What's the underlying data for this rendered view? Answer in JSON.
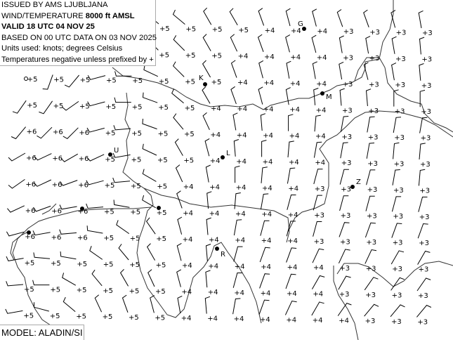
{
  "header": {
    "issued_by": "ISSUED BY AMS LJUBLJANA",
    "level_prefix": "WIND/TEMPERATURE ",
    "level": "8000 ft AMSL",
    "valid": "VALID 18 UTC 04 NOV 25",
    "based_on": "BASED ON 00 UTC DATA ON 03 NOV 2025",
    "units": "Units used: knots; degrees Celsius",
    "note": "Temperatures negative unless prefixed by +"
  },
  "model_label": "MODEL: ALADIN/SI",
  "stations": [
    {
      "label": "G"
    },
    {
      "label": "K"
    },
    {
      "label": "M"
    },
    {
      "label": "U"
    },
    {
      "label": "L"
    },
    {
      "label": "Z"
    },
    {
      "label": "R"
    }
  ],
  "grid": {
    "wind_speed_kt": 10,
    "temperatures": [
      [
        null,
        null,
        null,
        null,
        null,
        "+5",
        "+5",
        "+5",
        "+5",
        "+4",
        "+4",
        "+4",
        "+3",
        "+3",
        "+3",
        "+3"
      ],
      [
        null,
        null,
        null,
        null,
        null,
        "+5",
        "+5",
        "+5",
        "+4",
        "+4",
        "+4",
        "+4",
        "+3",
        "+3",
        "+3",
        "+3"
      ],
      [
        "+5",
        "+5",
        "+5",
        "+5",
        "+5",
        "+5",
        "+5",
        "+5",
        "+4",
        "+4",
        "+4",
        "+4",
        "+3",
        "+3",
        "+3",
        "+3"
      ],
      [
        "+5",
        "+5",
        "+5",
        "+5",
        "+5",
        "+5",
        "+5",
        "+4",
        "+4",
        "+4",
        "+4",
        "+4",
        "+3",
        "+3",
        "+3",
        "+3"
      ],
      [
        "+6",
        "+6",
        "+6",
        "+5",
        "+5",
        "+5",
        "+5",
        "+4",
        "+4",
        "+4",
        "+4",
        "+4",
        "+3",
        "+3",
        "+3",
        "+3"
      ],
      [
        "+6",
        "+6",
        "+6",
        "+5",
        "+5",
        "+5",
        "+5",
        "+4",
        "+4",
        "+4",
        "+4",
        "+4",
        "+3",
        "+3",
        "+3",
        "+3"
      ],
      [
        "+6",
        "+6",
        "+6",
        "+5",
        "+5",
        "+5",
        "+4",
        "+4",
        "+4",
        "+4",
        "+4",
        "+3",
        "+3",
        "+3",
        "+3",
        "+3"
      ],
      [
        "+6",
        "+6",
        "+6",
        "+5",
        "+5",
        "+5",
        "+4",
        "+4",
        "+4",
        "+4",
        "+4",
        "+3",
        "+3",
        "+3",
        "+3",
        "+3"
      ],
      [
        "+6",
        "+6",
        "+6",
        "+5",
        "+5",
        "+5",
        "+4",
        "+4",
        "+4",
        "+4",
        "+4",
        "+3",
        "+3",
        "+3",
        "+3",
        "+3"
      ],
      [
        "+5",
        "+5",
        "+5",
        "+5",
        "+5",
        "+5",
        "+4",
        "+4",
        "+4",
        "+4",
        "+4",
        "+4",
        "+3",
        "+3",
        "+3",
        "+3"
      ],
      [
        "+5",
        "+5",
        "+5",
        "+5",
        "+5",
        "+5",
        "+4",
        "+4",
        "+4",
        "+4",
        "+4",
        "+4",
        "+3",
        "+3",
        "+3",
        "+3"
      ],
      [
        "+5",
        "+5",
        "+5",
        "+5",
        "+5",
        "+5",
        "+4",
        "+4",
        "+4",
        "+4",
        "+4",
        "+4",
        "+4",
        "+3",
        "+3",
        "+3"
      ]
    ],
    "wind_direction_deg": [
      [
        310,
        310,
        310,
        315,
        320,
        310,
        310,
        330,
        330,
        340,
        345,
        345,
        340,
        340,
        345,
        350
      ],
      [
        310,
        310,
        310,
        315,
        320,
        315,
        315,
        330,
        335,
        340,
        345,
        345,
        350,
        350,
        350,
        355
      ],
      [
        null,
        200,
        220,
        255,
        270,
        295,
        315,
        330,
        340,
        345,
        350,
        350,
        350,
        345,
        350,
        355
      ],
      [
        215,
        215,
        235,
        255,
        270,
        290,
        310,
        330,
        340,
        345,
        350,
        355,
        355,
        355,
        0,
        0
      ],
      [
        220,
        225,
        225,
        255,
        265,
        290,
        320,
        335,
        350,
        355,
        0,
        5,
        10,
        10,
        10,
        10
      ],
      [
        240,
        245,
        240,
        245,
        260,
        295,
        330,
        345,
        355,
        0,
        5,
        10,
        10,
        10,
        5,
        5
      ],
      [
        235,
        245,
        250,
        255,
        265,
        300,
        335,
        350,
        0,
        5,
        10,
        15,
        15,
        15,
        10,
        5
      ],
      [
        245,
        250,
        260,
        265,
        280,
        300,
        340,
        355,
        5,
        10,
        15,
        15,
        15,
        15,
        15,
        15
      ],
      [
        255,
        260,
        265,
        280,
        305,
        325,
        345,
        355,
        10,
        15,
        15,
        15,
        20,
        20,
        20,
        20
      ],
      [
        260,
        275,
        280,
        305,
        320,
        330,
        345,
        355,
        15,
        20,
        20,
        25,
        25,
        25,
        30,
        30
      ],
      [
        265,
        270,
        300,
        320,
        330,
        335,
        345,
        355,
        15,
        20,
        20,
        30,
        30,
        35,
        35,
        35
      ],
      [
        260,
        285,
        310,
        335,
        340,
        345,
        350,
        355,
        10,
        20,
        25,
        30,
        35,
        40,
        40,
        40
      ]
    ]
  }
}
